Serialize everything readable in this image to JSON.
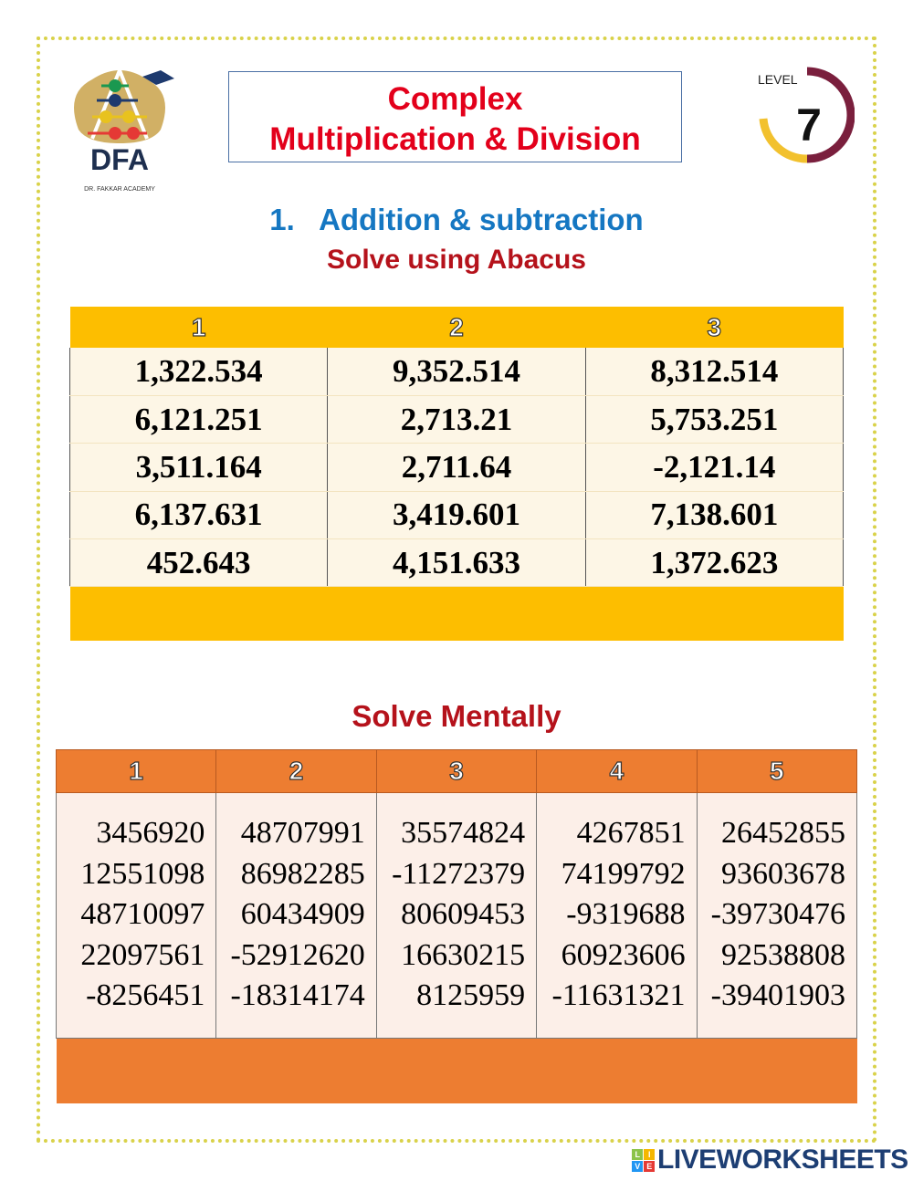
{
  "logo": {
    "text": "DFA",
    "subtitle": "DR. FAKKAR ACADEMY"
  },
  "title": {
    "line1": "Complex",
    "line2": "Multiplication & Division"
  },
  "level": {
    "label": "LEVEL",
    "number": "7",
    "colors": {
      "left": "#f2c12e",
      "right": "#7a1f3d"
    }
  },
  "section1": {
    "heading": "1.   Addition & subtraction",
    "subheading": "Solve using Abacus"
  },
  "table1": {
    "headers": [
      "1",
      "2",
      "3"
    ],
    "rows": [
      [
        "1,322.534",
        "9,352.514",
        "8,312.514"
      ],
      [
        "6,121.251",
        "2,713.21",
        "5,753.251"
      ],
      [
        "3,511.164",
        "2,711.64",
        "-2,121.14"
      ],
      [
        "6,137.631",
        "3,419.601",
        "7,138.601"
      ],
      [
        "452.643",
        "4,151.633",
        "1,372.623"
      ]
    ]
  },
  "section2": {
    "heading": "Solve Mentally"
  },
  "table2": {
    "headers": [
      "1",
      "2",
      "3",
      "4",
      "5"
    ],
    "columns": [
      [
        "3456920",
        "12551098",
        "48710097",
        "22097561",
        "-8256451"
      ],
      [
        "48707991",
        "86982285",
        "60434909",
        "-52912620",
        "-18314174"
      ],
      [
        "35574824",
        "-11272379",
        "80609453",
        "16630215",
        "8125959"
      ],
      [
        "4267851",
        "74199792",
        "-9319688",
        "60923606",
        "-11631321"
      ],
      [
        "26452855",
        "93603678",
        "-39730476",
        "92538808",
        "-39401903"
      ]
    ]
  },
  "footer": {
    "brand": "LIVEWORKSHEETS",
    "icon_letters": [
      "L",
      "I",
      "V",
      "E"
    ]
  }
}
